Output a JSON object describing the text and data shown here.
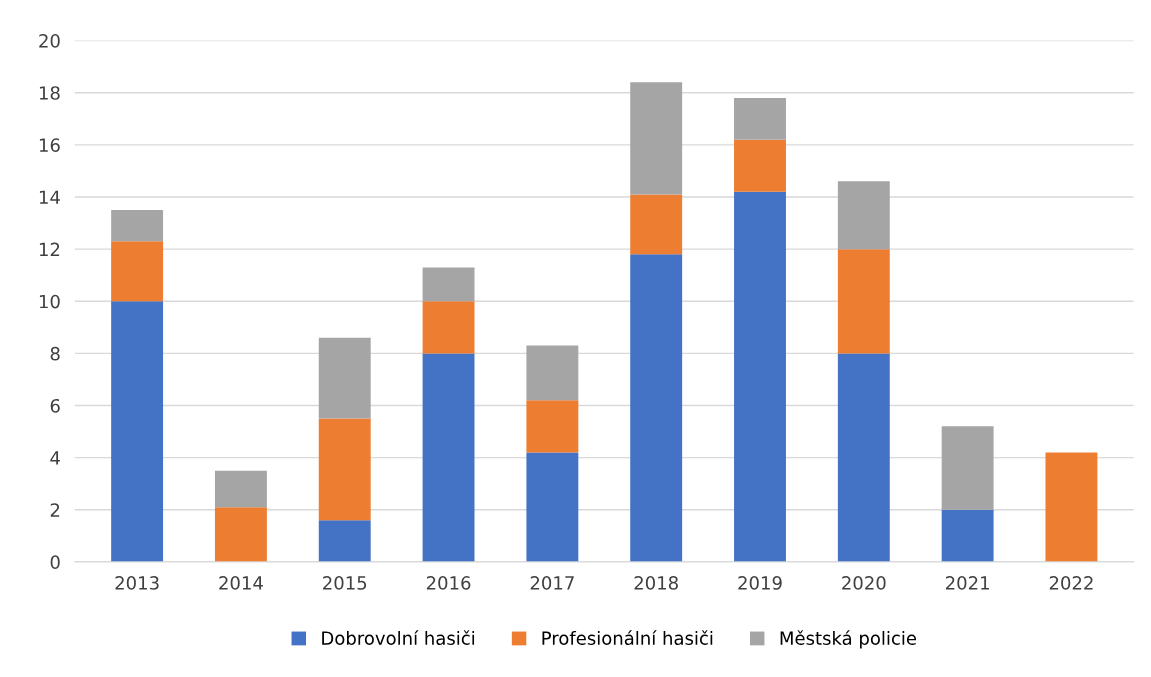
{
  "chart_data": {
    "type": "bar",
    "stacked": true,
    "categories": [
      "2013",
      "2014",
      "2015",
      "2016",
      "2017",
      "2018",
      "2019",
      "2020",
      "2021",
      "2022"
    ],
    "series": [
      {
        "name": "Dobrovolní hasiči",
        "color": "#4472c4",
        "values": [
          10,
          0,
          1.6,
          8,
          4.2,
          11.8,
          14.2,
          8,
          2,
          0
        ]
      },
      {
        "name": "Profesionální hasiči",
        "color": "#ed7d31",
        "values": [
          2.3,
          2.1,
          3.9,
          2,
          2,
          2.3,
          2,
          4,
          0,
          4.2
        ]
      },
      {
        "name": "Městská policie",
        "color": "#a5a5a5",
        "values": [
          1.2,
          1.4,
          3.1,
          1.3,
          2.1,
          4.3,
          1.6,
          2.6,
          3.2,
          0
        ]
      }
    ],
    "ylim": [
      0,
      20
    ],
    "yticks": [
      0,
      2,
      4,
      6,
      8,
      10,
      12,
      14,
      16,
      18,
      20
    ],
    "grid": "y",
    "legend": "bottom"
  }
}
